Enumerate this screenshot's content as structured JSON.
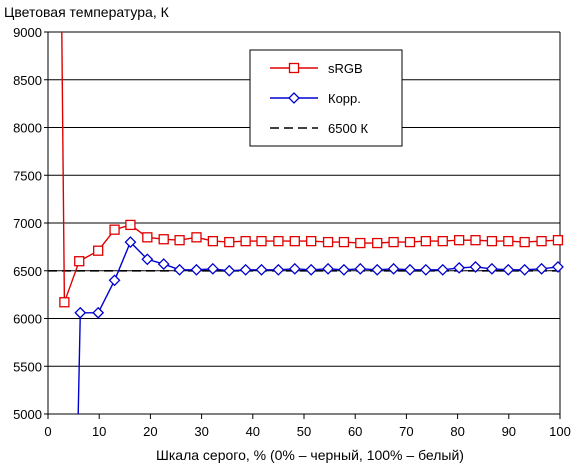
{
  "chart_data": {
    "type": "line",
    "title": "",
    "ylabel": "Цветовая температура, К",
    "xlabel": "Шкала серого, % (0% – черный, 100% – белый)",
    "xlim": [
      0,
      100
    ],
    "ylim": [
      5000,
      9000
    ],
    "xticks": [
      0,
      10,
      20,
      30,
      40,
      50,
      60,
      70,
      80,
      90,
      100
    ],
    "yticks": [
      5000,
      5500,
      6000,
      6500,
      7000,
      7500,
      8000,
      8500,
      9000
    ],
    "grid": "horizontal",
    "legend": "top-right",
    "series": [
      {
        "name": "sRGB",
        "color": "#e00000",
        "marker": "square",
        "points": [
          [
            2.7,
            9000
          ],
          [
            3.2,
            6170
          ],
          [
            6.1,
            6600
          ],
          [
            9.8,
            6710
          ],
          [
            13.0,
            6930
          ],
          [
            16.1,
            6980
          ],
          [
            19.4,
            6850
          ],
          [
            22.6,
            6830
          ],
          [
            25.7,
            6820
          ],
          [
            29.0,
            6850
          ],
          [
            32.2,
            6810
          ],
          [
            35.4,
            6800
          ],
          [
            38.6,
            6810
          ],
          [
            41.7,
            6810
          ],
          [
            45.0,
            6810
          ],
          [
            48.2,
            6810
          ],
          [
            51.4,
            6810
          ],
          [
            54.7,
            6800
          ],
          [
            57.8,
            6800
          ],
          [
            61.0,
            6790
          ],
          [
            64.3,
            6790
          ],
          [
            67.5,
            6800
          ],
          [
            70.7,
            6800
          ],
          [
            73.8,
            6810
          ],
          [
            77.1,
            6810
          ],
          [
            80.3,
            6820
          ],
          [
            83.5,
            6820
          ],
          [
            86.7,
            6810
          ],
          [
            89.9,
            6810
          ],
          [
            93.1,
            6800
          ],
          [
            96.4,
            6810
          ],
          [
            99.6,
            6820
          ]
        ]
      },
      {
        "name": "Корр.",
        "color": "#0000d0",
        "marker": "diamond",
        "points": [
          [
            5.9,
            5000
          ],
          [
            6.3,
            6060
          ],
          [
            9.8,
            6060
          ],
          [
            13.0,
            6400
          ],
          [
            16.1,
            6800
          ],
          [
            19.4,
            6620
          ],
          [
            22.6,
            6570
          ],
          [
            25.7,
            6510
          ],
          [
            29.0,
            6510
          ],
          [
            32.2,
            6520
          ],
          [
            35.4,
            6500
          ],
          [
            38.6,
            6510
          ],
          [
            41.7,
            6510
          ],
          [
            45.0,
            6510
          ],
          [
            48.2,
            6520
          ],
          [
            51.4,
            6510
          ],
          [
            54.7,
            6520
          ],
          [
            57.8,
            6510
          ],
          [
            61.0,
            6520
          ],
          [
            64.3,
            6510
          ],
          [
            67.5,
            6520
          ],
          [
            70.7,
            6510
          ],
          [
            73.8,
            6510
          ],
          [
            77.1,
            6510
          ],
          [
            80.3,
            6530
          ],
          [
            83.5,
            6540
          ],
          [
            86.7,
            6520
          ],
          [
            89.9,
            6510
          ],
          [
            93.1,
            6510
          ],
          [
            96.4,
            6520
          ],
          [
            99.6,
            6540
          ]
        ]
      },
      {
        "name": "6500 К",
        "color": "#000000",
        "marker": "none",
        "dashed": true,
        "points": [
          [
            0,
            6500
          ],
          [
            100,
            6500
          ]
        ]
      }
    ]
  }
}
